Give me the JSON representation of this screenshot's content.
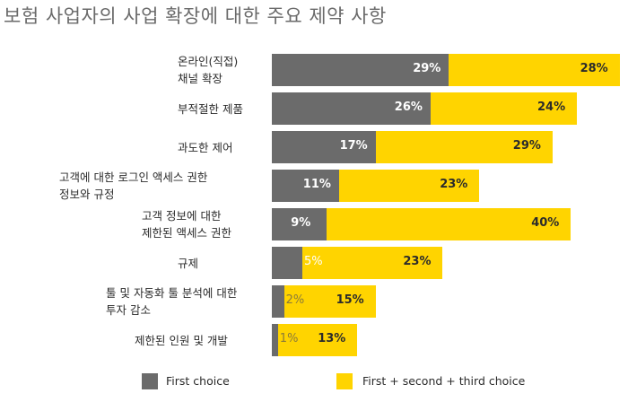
{
  "chart_data": {
    "type": "bar",
    "title": "보험 사업자의 사업 확장에 대한 주요 제약 사항",
    "categories": [
      "온라인(직접)\n채널 확장",
      "부적절한 제품",
      "과도한 제어",
      "고객에 대한 로그인 액세스 권한\n정보와 규정",
      "고객 정보에 대한\n제한된 액세스 권한",
      "규제",
      "툴 및 자동화 툴 분석에 대한\n투자 감소",
      "제한된 인원 및 개발"
    ],
    "series": [
      {
        "name": "First choice",
        "values": [
          29,
          26,
          17,
          11,
          9,
          5,
          2,
          1
        ],
        "labels": [
          "29%",
          "26%",
          "17%",
          "11%",
          "9%",
          "5%",
          "2%",
          "1%"
        ]
      },
      {
        "name": "First + second + third choice",
        "values": [
          28,
          24,
          29,
          23,
          40,
          23,
          15,
          13
        ],
        "labels": [
          "28%",
          "24%",
          "29%",
          "23%",
          "40%",
          "23%",
          "15%",
          "13%"
        ]
      }
    ],
    "stacked": true,
    "orientation": "horizontal",
    "legend_position": "bottom",
    "grid": false,
    "colors": {
      "first": "#6b6b6b",
      "cumulative": "#ffd400"
    }
  }
}
